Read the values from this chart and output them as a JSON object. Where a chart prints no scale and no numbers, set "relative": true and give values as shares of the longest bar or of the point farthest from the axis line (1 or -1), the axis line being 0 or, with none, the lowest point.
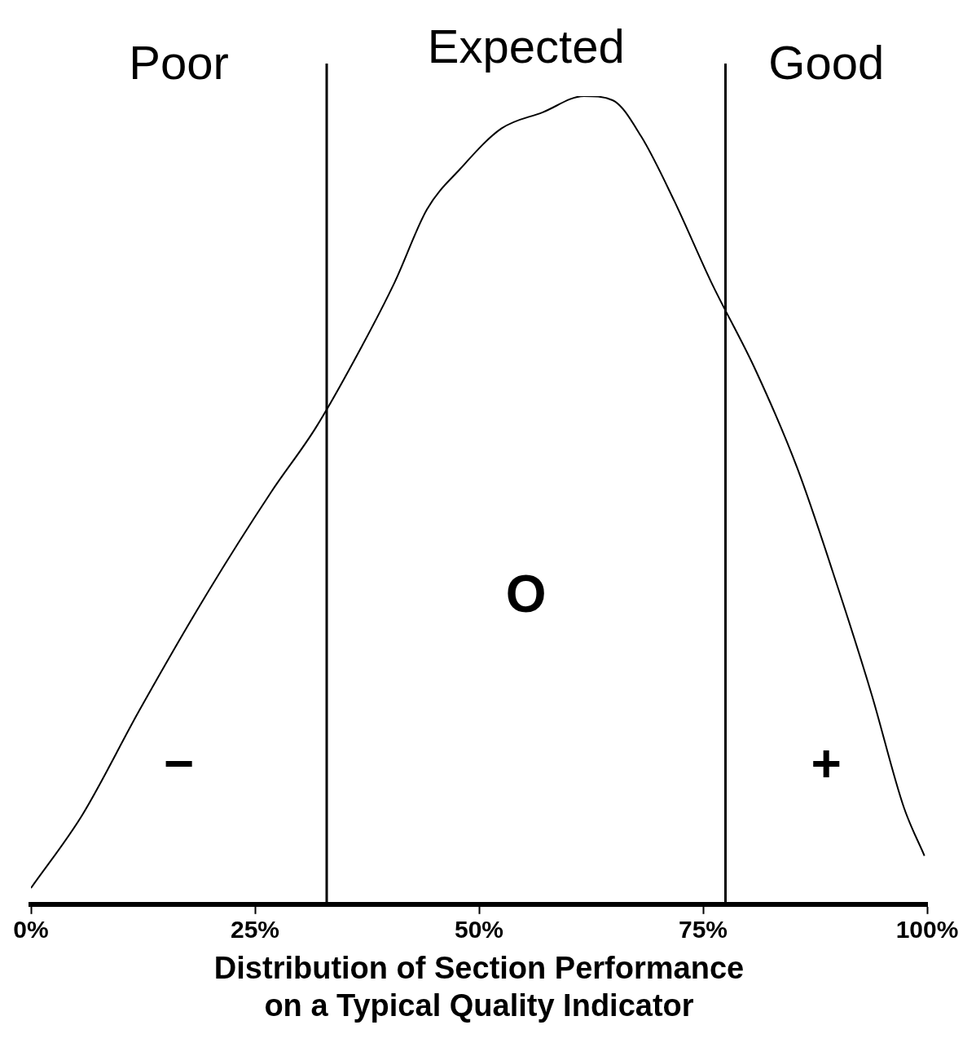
{
  "chart_data": {
    "type": "line",
    "relative": true,
    "xlabel": "Distribution of Section Performance\non a Typical Quality Indicator",
    "x": [
      0,
      5.7,
      12.1,
      19.4,
      26.8,
      31.8,
      36.9,
      40.6,
      44.2,
      47.9,
      52.5,
      57.1,
      61.7,
      64.9,
      68.1,
      71.8,
      75.9,
      80.9,
      85.5,
      90.1,
      93.8,
      97.4,
      99.7
    ],
    "series": [
      {
        "color": "#000000",
        "values": [
          0.02,
          0.11,
          0.24,
          0.38,
          0.51,
          0.59,
          0.69,
          0.77,
          0.86,
          0.91,
          0.96,
          0.98,
          1.0,
          0.995,
          0.95,
          0.87,
          0.77,
          0.66,
          0.54,
          0.39,
          0.26,
          0.12,
          0.06
        ]
      }
    ],
    "xlim": [
      0,
      100
    ],
    "xticks": [
      {
        "value": 0,
        "label": "0%"
      },
      {
        "value": 25,
        "label": "25%"
      },
      {
        "value": 50,
        "label": "50%"
      },
      {
        "value": 75,
        "label": "75%"
      },
      {
        "value": 100,
        "label": "100%"
      }
    ],
    "ref_lines": [
      {
        "axis": "x",
        "value": 33,
        "color": "#000000"
      },
      {
        "axis": "x",
        "value": 77.5,
        "color": "#000000"
      }
    ],
    "annotations": [
      "Poor",
      "Expected",
      "Good",
      "−",
      "O",
      "+"
    ],
    "grid": false,
    "legend": false,
    "marker": "none",
    "line_style": "solid"
  }
}
